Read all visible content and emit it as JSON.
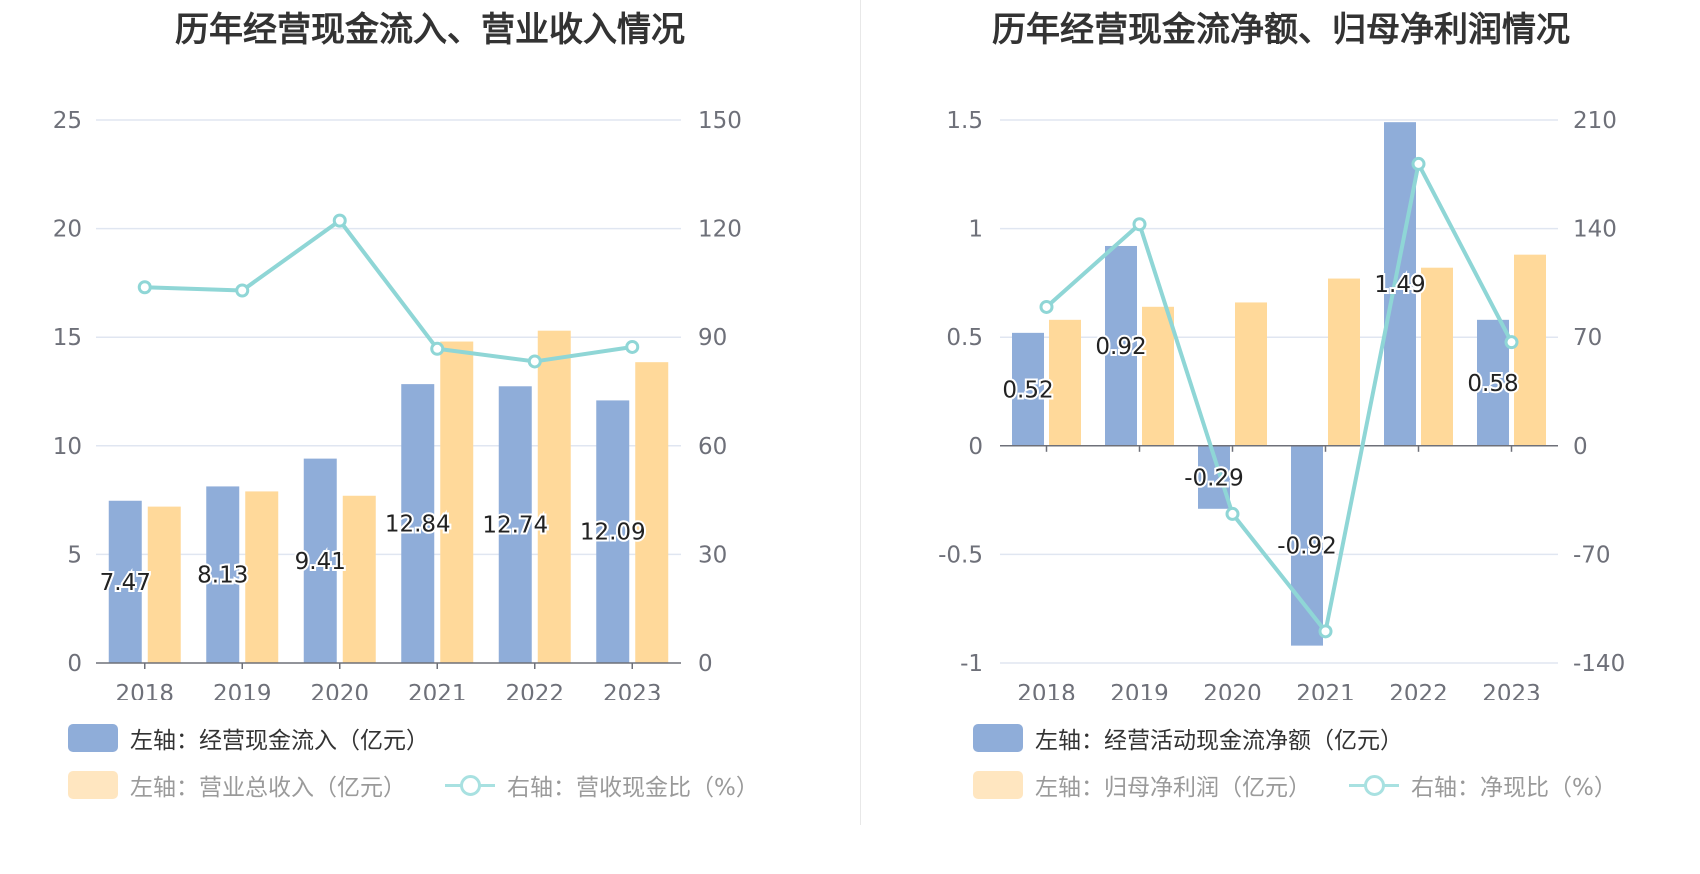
{
  "chart_data": [
    {
      "type": "bar",
      "title": "历年经营现金流入、营业收入情况",
      "categories": [
        "2018",
        "2019",
        "2020",
        "2021",
        "2022",
        "2023"
      ],
      "left_axis": {
        "ylim": [
          0,
          25
        ],
        "ticks": [
          "0",
          "5",
          "10",
          "15",
          "20",
          "25"
        ]
      },
      "right_axis": {
        "ylim": [
          0,
          150
        ],
        "ticks": [
          "0",
          "30",
          "60",
          "90",
          "120",
          "150"
        ]
      },
      "grid": true,
      "legend_position": "bottom",
      "series": [
        {
          "name": "左轴：经营现金流入（亿元）",
          "type": "bar",
          "axis": "left",
          "color": "#8fadd9",
          "values": [
            7.47,
            8.13,
            9.41,
            12.84,
            12.74,
            12.09
          ],
          "labels": [
            "7.47",
            "8.13",
            "9.41",
            "12.84",
            "12.74",
            "12.09"
          ]
        },
        {
          "name": "左轴：营业总收入（亿元）",
          "type": "bar",
          "axis": "left",
          "color": "#ffd99a",
          "values": [
            7.2,
            7.9,
            7.7,
            14.8,
            15.3,
            13.85
          ]
        },
        {
          "name": "右轴：营收现金比（%）",
          "type": "line",
          "axis": "right",
          "color": "#8fd6d6",
          "values": [
            103.8,
            102.9,
            122.2,
            86.8,
            83.3,
            87.3
          ]
        }
      ]
    },
    {
      "type": "bar",
      "title": "历年经营现金流净额、归母净利润情况",
      "categories": [
        "2018",
        "2019",
        "2020",
        "2021",
        "2022",
        "2023"
      ],
      "left_axis": {
        "ylim": [
          -1,
          1.5
        ],
        "ticks": [
          "-1",
          "-0.5",
          "0",
          "0.5",
          "1",
          "1.5"
        ]
      },
      "right_axis": {
        "ylim": [
          -140,
          210
        ],
        "ticks": [
          "-140",
          "-70",
          "0",
          "70",
          "140",
          "210"
        ]
      },
      "grid": true,
      "legend_position": "bottom",
      "series": [
        {
          "name": "左轴：经营活动现金流净额（亿元）",
          "type": "bar",
          "axis": "left",
          "color": "#8fadd9",
          "values": [
            0.52,
            0.92,
            -0.29,
            -0.92,
            1.49,
            0.58
          ],
          "labels": [
            "0.52",
            "0.92",
            "-0.29",
            "-0.92",
            "1.49",
            "0.58"
          ]
        },
        {
          "name": "左轴：归母净利润（亿元）",
          "type": "bar",
          "axis": "left",
          "color": "#ffd99a",
          "values": [
            0.58,
            0.64,
            0.66,
            0.77,
            0.82,
            0.88
          ]
        },
        {
          "name": "右轴：净现比（%）",
          "type": "line",
          "axis": "right",
          "color": "#8fd6d6",
          "values": [
            89.5,
            142.8,
            -43.9,
            -119.6,
            181.7,
            66.8
          ]
        }
      ]
    }
  ]
}
